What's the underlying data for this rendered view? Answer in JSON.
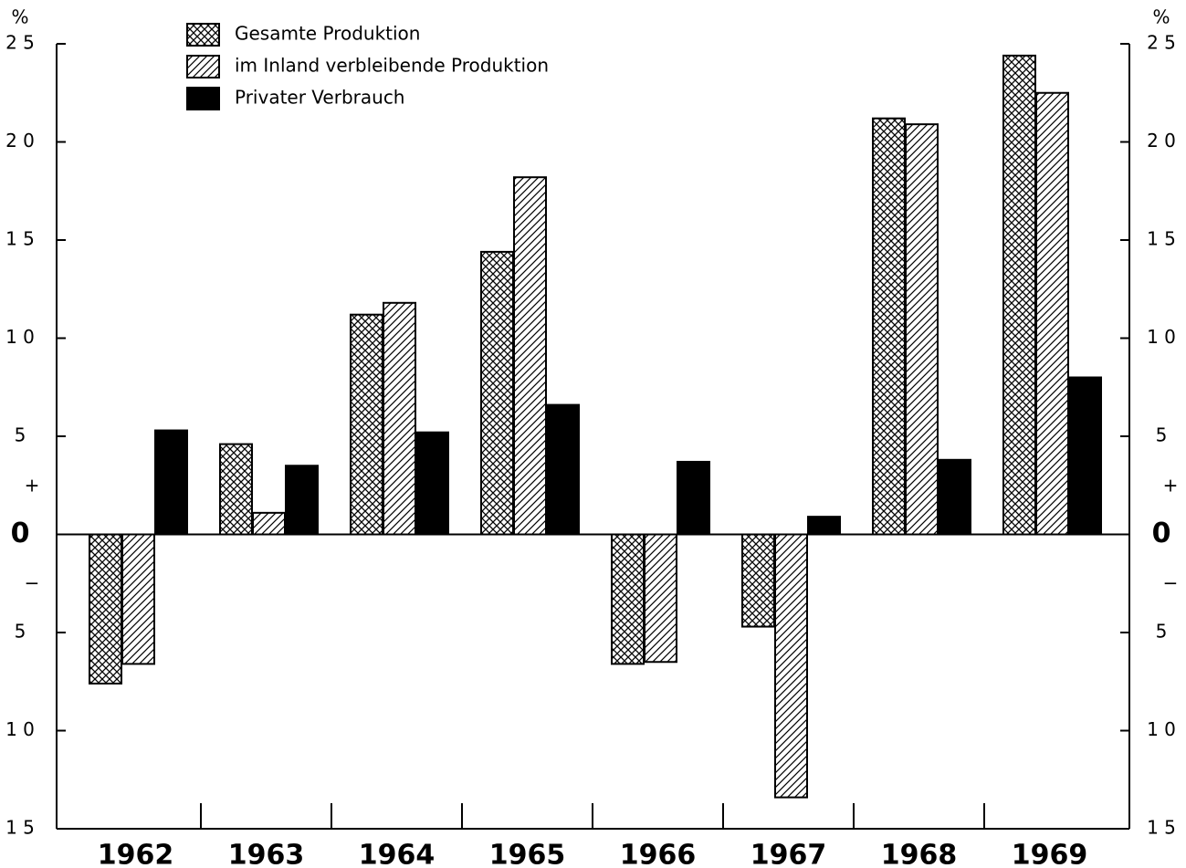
{
  "chart_data": {
    "type": "bar",
    "categories": [
      "1962",
      "1963",
      "1964",
      "1965",
      "1966",
      "1967",
      "1968",
      "1969"
    ],
    "series": [
      {
        "name": "Gesamte Produktion",
        "color": "#000000",
        "values": [
          -7.6,
          4.6,
          11.2,
          14.4,
          -6.6,
          -4.7,
          21.2,
          24.4
        ]
      },
      {
        "name": "im Inland verbleibende Produktion",
        "color": "#000000",
        "values": [
          -6.6,
          1.1,
          11.8,
          18.2,
          -6.5,
          -13.4,
          20.9,
          22.5
        ]
      },
      {
        "name": "Privater Verbrauch",
        "color": "#000000",
        "values": [
          5.3,
          3.5,
          5.2,
          6.6,
          3.7,
          0.9,
          3.8,
          8.0
        ]
      }
    ],
    "ylim": [
      -15,
      25
    ],
    "yticks": [
      {
        "value": -15,
        "label": "1 5"
      },
      {
        "value": -10,
        "label": "1 0"
      },
      {
        "value": -5,
        "label": "5"
      },
      0,
      5,
      {
        "value": 10,
        "label": "1 0"
      },
      {
        "value": 15,
        "label": "1 5"
      },
      {
        "value": 20,
        "label": "2 0"
      },
      {
        "value": 25,
        "label": "2 5"
      }
    ],
    "unit": "%",
    "plus_sign": "+",
    "minus_sign": "−",
    "legend": "top-left"
  }
}
